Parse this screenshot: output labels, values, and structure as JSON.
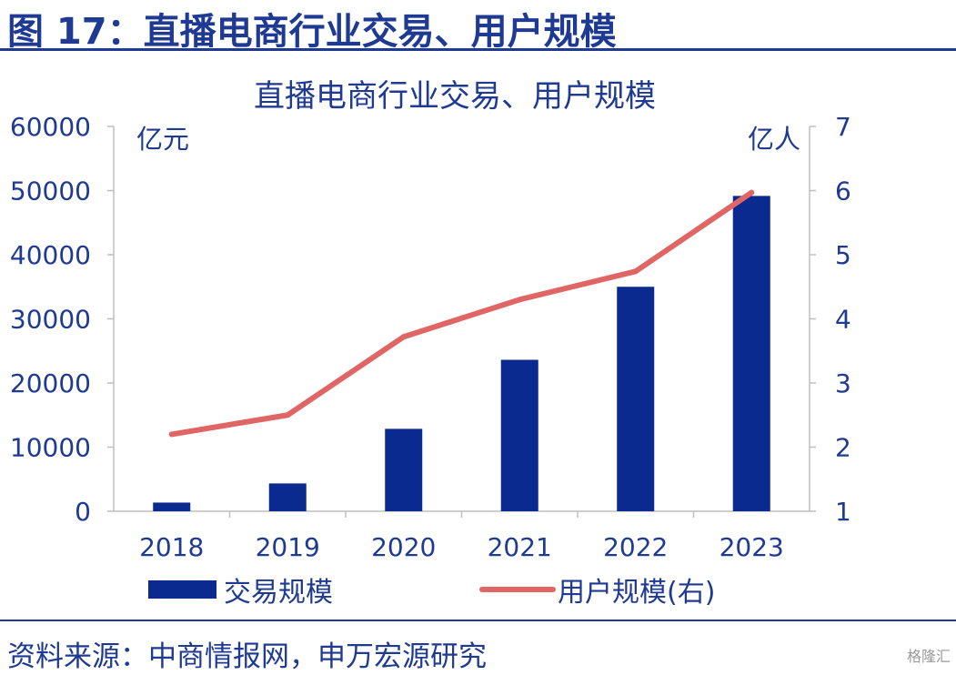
{
  "figure_title": "图 17：直播电商行业交易、用户规模",
  "source": "资料来源：中商情报网，申万宏源研究",
  "watermark": "格隆汇",
  "chart_data": {
    "type": "bar",
    "title": "直播电商行业交易、用户规模",
    "categories": [
      "2018",
      "2019",
      "2020",
      "2021",
      "2022",
      "2023"
    ],
    "series": [
      {
        "name": "交易规模",
        "type": "bar",
        "axis": "left",
        "color": "#0a2a8f",
        "values": [
          1354,
          4338,
          12850,
          23615,
          35000,
          49168
        ]
      },
      {
        "name": "用户规模(右)",
        "type": "line",
        "axis": "right",
        "color": "#e06666",
        "values": [
          2.2,
          2.5,
          3.72,
          4.3,
          4.74,
          5.97
        ]
      }
    ],
    "y_left": {
      "unit": "亿元",
      "min": 0,
      "max": 60000,
      "ticks": [
        "0",
        "10000",
        "20000",
        "30000",
        "40000",
        "50000",
        "60000"
      ]
    },
    "y_right": {
      "unit": "亿人",
      "min": 1,
      "max": 7,
      "ticks": [
        "1",
        "2",
        "3",
        "4",
        "5",
        "6",
        "7"
      ]
    },
    "grid": false,
    "legend_position": "bottom"
  }
}
